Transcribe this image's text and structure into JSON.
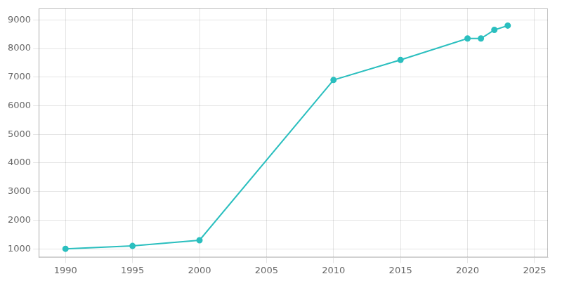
{
  "chart_data": {
    "type": "line",
    "x": [
      1990,
      1995,
      2000,
      2010,
      2015,
      2020,
      2021,
      2022,
      2023
    ],
    "values": [
      1000,
      1100,
      1300,
      6900,
      7600,
      8350,
      8350,
      8650,
      8800
    ],
    "color": "#2bbfbf",
    "marker": "circle",
    "xlim": [
      1988,
      2026
    ],
    "xticks": [
      1990,
      1995,
      2000,
      2005,
      2010,
      2015,
      2020,
      2025
    ],
    "ylim": [
      700,
      9400
    ],
    "yticks": [
      1000,
      2000,
      3000,
      4000,
      5000,
      6000,
      7000,
      8000,
      9000
    ],
    "grid": true
  }
}
